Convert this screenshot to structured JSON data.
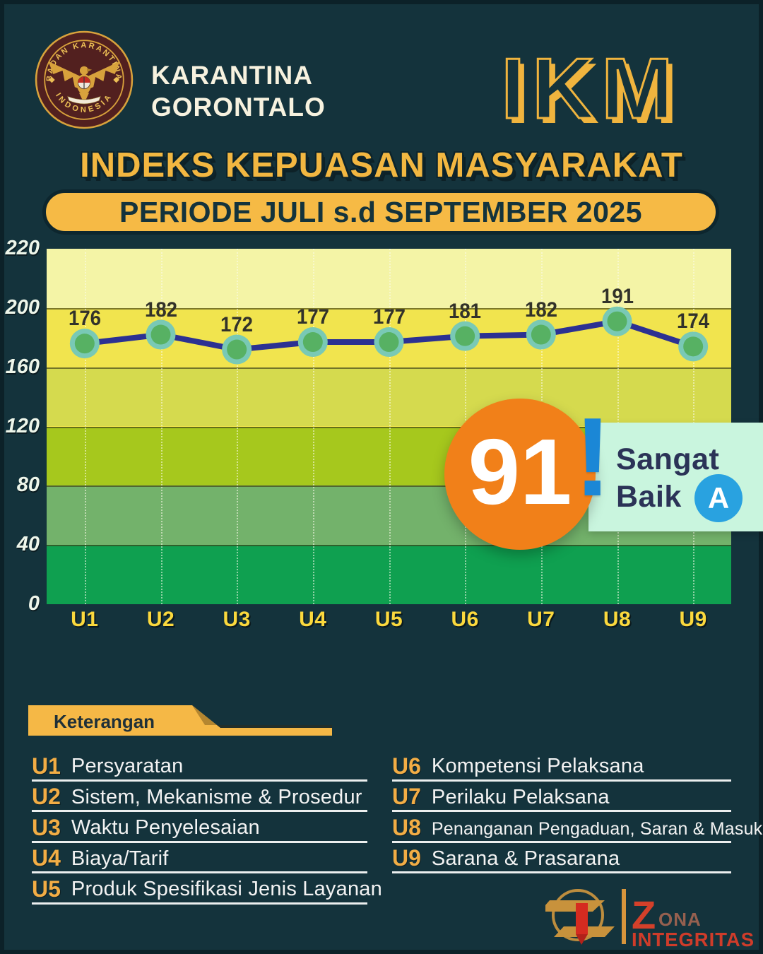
{
  "header": {
    "badge": {
      "ring_text_top": "BADAN KARANTINA",
      "ring_text_bottom": "INDONESIA"
    },
    "agency_name": "KARANTINA\nGORONTALO",
    "program_logo_text": "IKM"
  },
  "title": "INDEKS KEPUASAN MASYARAKAT",
  "period": "PERIODE JULI s.d SEPTEMBER 2025",
  "chart_data": {
    "type": "line",
    "categories": [
      "U1",
      "U2",
      "U3",
      "U4",
      "U5",
      "U6",
      "U7",
      "U8",
      "U9"
    ],
    "values": [
      176,
      182,
      172,
      177,
      177,
      181,
      182,
      191,
      174
    ],
    "y_ticks": [
      220,
      200,
      160,
      120,
      80,
      40,
      0
    ],
    "ylim": [
      0,
      220
    ],
    "band_colors_top_to_bottom": [
      "#f4f4a6",
      "#f1e44e",
      "#d5da4e",
      "#a6c81d",
      "#73b26b",
      "#0fa050"
    ],
    "line_color": "#2c3192",
    "marker_outer_color": "#79c9b5",
    "marker_inner_color": "#57b163",
    "grid": "dotted vertical gridlines per category, solid horizontal band boundaries",
    "legend_position": "none"
  },
  "score": {
    "value": "91",
    "exclamation": "!",
    "label": "Sangat\nBaik",
    "grade": "A",
    "circle_color": "#f18019",
    "panel_color": "#c9f5de",
    "grade_circle_color": "#29a2e0"
  },
  "legend": {
    "title": "Keterangan",
    "left": [
      {
        "code": "U1",
        "label": "Persyaratan"
      },
      {
        "code": "U2",
        "label": "Sistem, Mekanisme & Prosedur"
      },
      {
        "code": "U3",
        "label": "Waktu Penyelesaian"
      },
      {
        "code": "U4",
        "label": "Biaya/Tarif"
      },
      {
        "code": "U5",
        "label": "Produk Spesifikasi Jenis Layanan"
      }
    ],
    "right": [
      {
        "code": "U6",
        "label": "Kompetensi Pelaksana"
      },
      {
        "code": "U7",
        "label": "Perilaku Pelaksana"
      },
      {
        "code": "U8",
        "label": "Penanganan Pengaduan, Saran & Masukan"
      },
      {
        "code": "U9",
        "label": "Sarana & Prasarana"
      }
    ]
  },
  "footer_logo": {
    "z": "Z",
    "ona": "ONA",
    "integritas": "INTEGRITAS"
  },
  "colors": {
    "background": "#14333c",
    "gold": "#f5b846",
    "title_gold": "#f2b741"
  }
}
